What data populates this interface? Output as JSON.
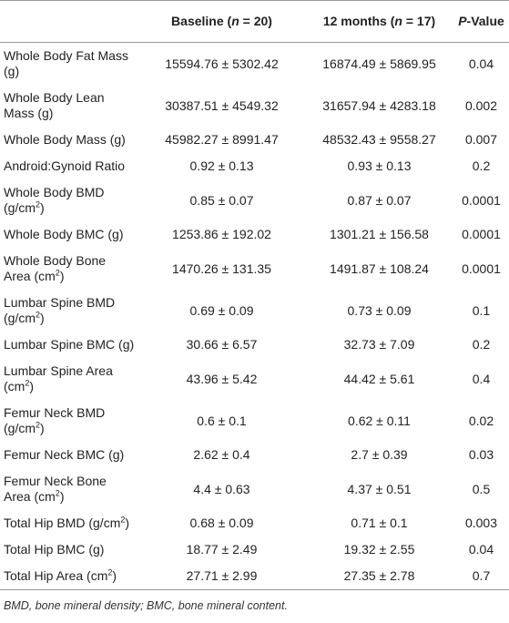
{
  "table": {
    "columns": [
      [
        {
          "text": "Baseline ("
        },
        {
          "text": "n",
          "italic": true
        },
        {
          "text": " = 20)"
        }
      ],
      [
        {
          "text": "12 months ("
        },
        {
          "text": "n",
          "italic": true
        },
        {
          "text": " = 17)"
        }
      ],
      [
        {
          "text": "P",
          "italic": true
        },
        {
          "text": "-Value"
        }
      ]
    ],
    "rows": [
      {
        "label": [
          {
            "text": "Whole Body Fat Mass (g)"
          }
        ],
        "baseline": "15594.76 ± 5302.42",
        "month12": "16874.49 ± 5869.95",
        "p": "0.04"
      },
      {
        "label": [
          {
            "text": "Whole Body Lean Mass (g)"
          }
        ],
        "baseline": "30387.51 ± 4549.32",
        "month12": "31657.94 ± 4283.18",
        "p": "0.002"
      },
      {
        "label": [
          {
            "text": "Whole Body Mass (g)"
          }
        ],
        "baseline": "45982.27 ± 8991.47",
        "month12": "48532.43 ± 9558.27",
        "p": "0.007"
      },
      {
        "label": [
          {
            "text": "Android:Gynoid Ratio"
          }
        ],
        "baseline": "0.92 ± 0.13",
        "month12": "0.93 ± 0.13",
        "p": "0.2"
      },
      {
        "label": [
          {
            "text": "Whole Body BMD (g/cm"
          },
          {
            "text": "2",
            "sup": true
          },
          {
            "text": ")"
          }
        ],
        "baseline": "0.85 ± 0.07",
        "month12": "0.87 ± 0.07",
        "p": "0.0001"
      },
      {
        "label": [
          {
            "text": "Whole Body BMC (g)"
          }
        ],
        "baseline": "1253.86 ± 192.02",
        "month12": "1301.21 ± 156.58",
        "p": "0.0001"
      },
      {
        "label": [
          {
            "text": "Whole Body Bone Area (cm"
          },
          {
            "text": "2",
            "sup": true
          },
          {
            "text": ")"
          }
        ],
        "baseline": "1470.26 ± 131.35",
        "month12": "1491.87 ± 108.24",
        "p": "0.0001"
      },
      {
        "label": [
          {
            "text": "Lumbar Spine BMD (g/cm"
          },
          {
            "text": "2",
            "sup": true
          },
          {
            "text": ")"
          }
        ],
        "baseline": "0.69 ± 0.09",
        "month12": "0.73 ± 0.09",
        "p": "0.1"
      },
      {
        "label": [
          {
            "text": "Lumbar Spine BMC (g)"
          }
        ],
        "baseline": "30.66 ± 6.57",
        "month12": "32.73 ± 7.09",
        "p": "0.2"
      },
      {
        "label": [
          {
            "text": "Lumbar Spine Area (cm"
          },
          {
            "text": "2",
            "sup": true
          },
          {
            "text": ")"
          }
        ],
        "baseline": "43.96 ± 5.42",
        "month12": "44.42 ± 5.61",
        "p": "0.4"
      },
      {
        "label": [
          {
            "text": "Femur Neck BMD (g/cm"
          },
          {
            "text": "2",
            "sup": true
          },
          {
            "text": ")"
          }
        ],
        "baseline": "0.6 ± 0.1",
        "month12": "0.62 ± 0.11",
        "p": "0.02"
      },
      {
        "label": [
          {
            "text": "Femur Neck BMC (g)"
          }
        ],
        "baseline": "2.62 ± 0.4",
        "month12": "2.7 ± 0.39",
        "p": "0.03"
      },
      {
        "label": [
          {
            "text": "Femur Neck Bone Area (cm"
          },
          {
            "text": "2",
            "sup": true
          },
          {
            "text": ")"
          }
        ],
        "baseline": "4.4 ± 0.63",
        "month12": "4.37 ± 0.51",
        "p": "0.5"
      },
      {
        "label": [
          {
            "text": "Total Hip BMD (g/cm"
          },
          {
            "text": "2",
            "sup": true
          },
          {
            "text": ")"
          }
        ],
        "baseline": "0.68 ± 0.09",
        "month12": "0.71 ± 0.1",
        "p": "0.003"
      },
      {
        "label": [
          {
            "text": "Total Hip BMC (g)"
          }
        ],
        "baseline": "18.77 ± 2.49",
        "month12": "19.32 ± 2.55",
        "p": "0.04"
      },
      {
        "label": [
          {
            "text": "Total Hip Area (cm"
          },
          {
            "text": "2",
            "sup": true
          },
          {
            "text": ")"
          }
        ],
        "baseline": "27.71 ± 2.99",
        "month12": "27.35 ± 2.78",
        "p": "0.7"
      }
    ],
    "footnote": "BMD, bone mineral density; BMC, bone mineral content."
  }
}
